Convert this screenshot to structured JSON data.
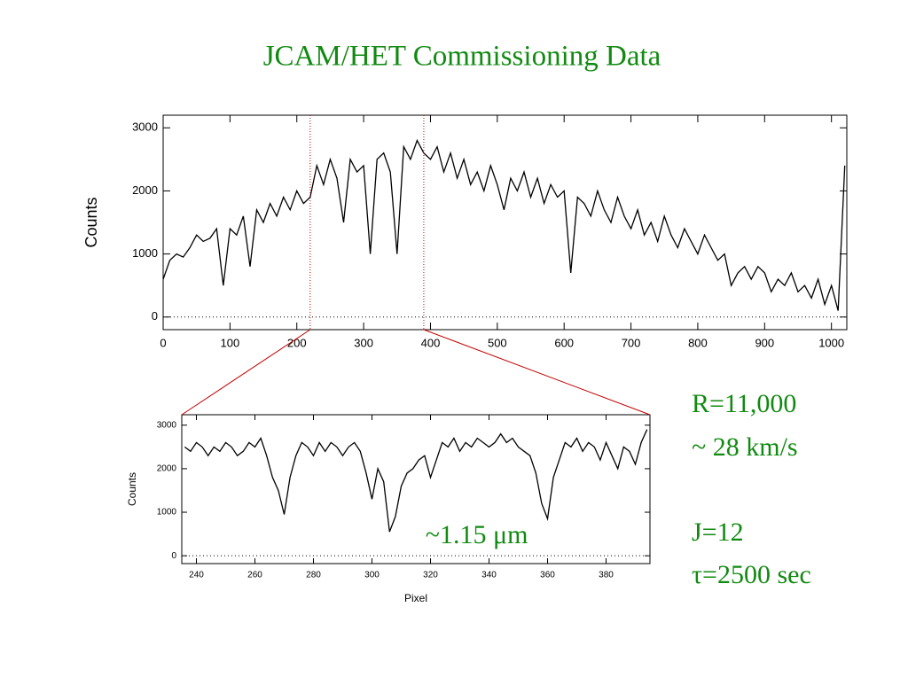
{
  "title": "JCAM/HET Commissioning Data",
  "annotations": [
    "R=11,000",
    "~ 28 km/s",
    "J=12",
    "τ=2500 sec"
  ],
  "chart_data": [
    {
      "type": "line",
      "y_label": "Counts",
      "color": "#000000",
      "xlim": [
        0,
        1023
      ],
      "ylim": [
        -200,
        3200
      ],
      "xticks": [
        0,
        100,
        200,
        300,
        400,
        500,
        600,
        700,
        800,
        900,
        1000
      ],
      "yticks": [
        0,
        1000,
        2000,
        3000
      ],
      "zero_line": true,
      "zoom_range": [
        220,
        390
      ],
      "zoom_color": "#c00000",
      "x": [
        0,
        10,
        20,
        30,
        40,
        50,
        60,
        70,
        80,
        90,
        100,
        110,
        120,
        130,
        140,
        150,
        160,
        170,
        180,
        190,
        200,
        210,
        220,
        230,
        240,
        250,
        260,
        270,
        280,
        290,
        300,
        310,
        320,
        330,
        340,
        350,
        360,
        370,
        380,
        390,
        400,
        410,
        420,
        430,
        440,
        450,
        460,
        470,
        480,
        490,
        500,
        510,
        520,
        530,
        540,
        550,
        560,
        570,
        580,
        590,
        600,
        610,
        620,
        630,
        640,
        650,
        660,
        670,
        680,
        690,
        700,
        710,
        720,
        730,
        740,
        750,
        760,
        770,
        780,
        790,
        800,
        810,
        820,
        830,
        840,
        850,
        860,
        870,
        880,
        890,
        900,
        910,
        920,
        930,
        940,
        950,
        960,
        970,
        980,
        990,
        1000,
        1010,
        1020
      ],
      "values": [
        600,
        900,
        1000,
        950,
        1100,
        1300,
        1200,
        1250,
        1400,
        500,
        1400,
        1300,
        1600,
        800,
        1700,
        1500,
        1800,
        1600,
        1900,
        1700,
        2000,
        1800,
        1900,
        2400,
        2100,
        2500,
        2200,
        1500,
        2500,
        2300,
        2400,
        1000,
        2500,
        2600,
        2300,
        1000,
        2700,
        2500,
        2800,
        2600,
        2500,
        2700,
        2300,
        2600,
        2200,
        2500,
        2100,
        2300,
        2000,
        2400,
        2100,
        1700,
        2200,
        2000,
        2300,
        1900,
        2200,
        1800,
        2100,
        1900,
        2000,
        700,
        1900,
        1800,
        1600,
        2000,
        1700,
        1500,
        1900,
        1600,
        1400,
        1700,
        1300,
        1500,
        1200,
        1600,
        1300,
        1100,
        1400,
        1200,
        1000,
        1300,
        1100,
        900,
        1000,
        500,
        700,
        800,
        600,
        800,
        700,
        400,
        600,
        500,
        700,
        400,
        500,
        300,
        600,
        200,
        500,
        100,
        2400
      ]
    },
    {
      "type": "line",
      "x_label": "Pixel",
      "y_label": "Counts",
      "color": "#000000",
      "annotation": "~1.15 μm",
      "xlim": [
        235,
        395
      ],
      "ylim": [
        -180,
        3240
      ],
      "xticks": [
        240,
        260,
        280,
        300,
        320,
        340,
        360,
        380
      ],
      "yticks": [
        0,
        1000,
        2000,
        3000
      ],
      "zero_line": true,
      "x": [
        236,
        238,
        240,
        242,
        244,
        246,
        248,
        250,
        252,
        254,
        256,
        258,
        260,
        262,
        264,
        266,
        268,
        270,
        272,
        274,
        276,
        278,
        280,
        282,
        284,
        286,
        288,
        290,
        292,
        294,
        296,
        298,
        300,
        302,
        304,
        306,
        308,
        310,
        312,
        314,
        316,
        318,
        320,
        322,
        324,
        326,
        328,
        330,
        332,
        334,
        336,
        338,
        340,
        342,
        344,
        346,
        348,
        350,
        352,
        354,
        356,
        358,
        360,
        362,
        364,
        366,
        368,
        370,
        372,
        374,
        376,
        378,
        380,
        382,
        384,
        386,
        388,
        390,
        392,
        394
      ],
      "values": [
        2500,
        2400,
        2600,
        2500,
        2300,
        2500,
        2400,
        2600,
        2500,
        2300,
        2400,
        2600,
        2500,
        2700,
        2300,
        1800,
        1500,
        950,
        1800,
        2300,
        2600,
        2500,
        2300,
        2600,
        2400,
        2600,
        2500,
        2300,
        2500,
        2600,
        2400,
        1900,
        1300,
        2000,
        1700,
        550,
        900,
        1600,
        1900,
        2000,
        2200,
        2300,
        1800,
        2200,
        2600,
        2500,
        2700,
        2400,
        2600,
        2500,
        2700,
        2600,
        2500,
        2600,
        2800,
        2600,
        2700,
        2500,
        2400,
        2300,
        1900,
        1200,
        850,
        1800,
        2200,
        2600,
        2500,
        2700,
        2400,
        2600,
        2500,
        2200,
        2600,
        2300,
        2000,
        2500,
        2400,
        2100,
        2600,
        2900
      ]
    }
  ]
}
